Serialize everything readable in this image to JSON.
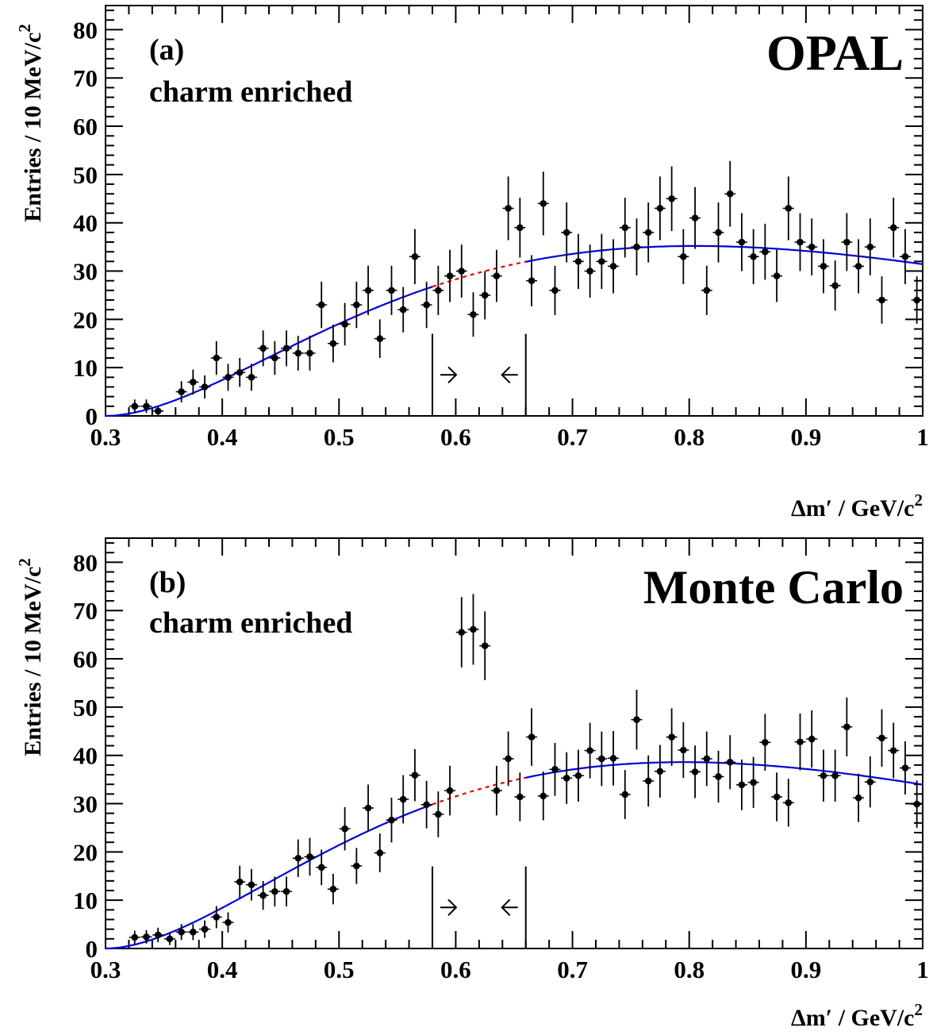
{
  "chart_data": [
    {
      "type": "scatter",
      "panel_label": "(a)",
      "subtitle": "charm enriched",
      "title": "OPAL",
      "ylabel_main": "Entries / 10 MeV/c",
      "ylabel_sup": "2",
      "xlabel_main": "Δm′ / GeV/c",
      "xlabel_sup": "2",
      "xlim": [
        0.3,
        1.0
      ],
      "ylim": [
        0,
        85
      ],
      "xticks": [
        "0.3",
        "0.4",
        "0.5",
        "0.6",
        "0.7",
        "0.8",
        "0.9",
        "1"
      ],
      "yticks": [
        "0",
        "10",
        "20",
        "30",
        "40",
        "50",
        "60",
        "70",
        "80"
      ],
      "grid": false,
      "signal_window": [
        0.58,
        0.66
      ],
      "fit_color": "#0000dd",
      "interp_color": "#ee0000",
      "series": [
        {
          "x": [
            0.325,
            0.335,
            0.345,
            0.365,
            0.375,
            0.385,
            0.395,
            0.405,
            0.415,
            0.425,
            0.435,
            0.445,
            0.455,
            0.465,
            0.475,
            0.485,
            0.495,
            0.505,
            0.515,
            0.525,
            0.535,
            0.545,
            0.555,
            0.565,
            0.575,
            0.585,
            0.595,
            0.605,
            0.615,
            0.625,
            0.635,
            0.645,
            0.655,
            0.665,
            0.675,
            0.685,
            0.695,
            0.705,
            0.715,
            0.725,
            0.735,
            0.745,
            0.755,
            0.765,
            0.775,
            0.785,
            0.795,
            0.805,
            0.815,
            0.825,
            0.835,
            0.845,
            0.855,
            0.865,
            0.875,
            0.885,
            0.895,
            0.905,
            0.915,
            0.925,
            0.935,
            0.945,
            0.955,
            0.965,
            0.975,
            0.985,
            0.995
          ],
          "y": [
            2,
            2,
            1,
            5,
            7,
            6,
            12,
            8,
            9,
            8,
            14,
            12,
            14,
            13,
            13,
            23,
            15,
            19,
            23,
            26,
            16,
            26,
            22,
            33,
            23,
            26,
            29,
            30,
            21,
            25,
            29,
            43,
            39,
            28,
            44,
            26,
            38,
            32,
            30,
            32,
            31,
            39,
            35,
            38,
            43,
            45,
            33,
            41,
            26,
            38,
            46,
            36,
            33,
            34,
            29,
            43,
            36,
            35,
            31,
            27,
            36,
            31,
            35,
            24,
            39,
            33,
            24
          ],
          "err": [
            1.4,
            1.4,
            1.0,
            2.2,
            2.6,
            2.4,
            3.5,
            2.8,
            3.0,
            2.8,
            3.7,
            3.5,
            3.7,
            3.6,
            3.6,
            4.8,
            3.9,
            4.4,
            4.8,
            5.1,
            4.0,
            5.1,
            4.7,
            5.7,
            4.8,
            5.1,
            5.4,
            5.5,
            4.6,
            5.0,
            5.4,
            6.6,
            6.2,
            5.3,
            6.6,
            5.1,
            6.2,
            5.7,
            5.5,
            5.7,
            5.6,
            6.2,
            5.9,
            6.2,
            6.6,
            6.7,
            5.7,
            6.4,
            5.1,
            6.2,
            6.8,
            6.0,
            5.7,
            5.8,
            5.4,
            6.6,
            6.0,
            5.9,
            5.6,
            5.2,
            6.0,
            5.6,
            5.9,
            4.9,
            6.2,
            5.7,
            4.9
          ]
        }
      ]
    },
    {
      "type": "scatter",
      "panel_label": "(b)",
      "subtitle": "charm enriched",
      "title": "Monte Carlo",
      "ylabel_main": "Entries / 10 MeV/c",
      "ylabel_sup": "2",
      "xlabel_main": "Δm′ / GeV/c",
      "xlabel_sup": "2",
      "xlim": [
        0.3,
        1.0
      ],
      "ylim": [
        0,
        85
      ],
      "xticks": [
        "0.3",
        "0.4",
        "0.5",
        "0.6",
        "0.7",
        "0.8",
        "0.9",
        "1"
      ],
      "yticks": [
        "0",
        "10",
        "20",
        "30",
        "40",
        "50",
        "60",
        "70",
        "80"
      ],
      "grid": false,
      "signal_window": [
        0.58,
        0.66
      ],
      "fit_color": "#0000dd",
      "interp_color": "#ee0000",
      "series": [
        {
          "x": [
            0.325,
            0.335,
            0.345,
            0.355,
            0.365,
            0.375,
            0.385,
            0.395,
            0.405,
            0.415,
            0.425,
            0.435,
            0.445,
            0.455,
            0.465,
            0.475,
            0.485,
            0.495,
            0.505,
            0.515,
            0.525,
            0.535,
            0.545,
            0.555,
            0.565,
            0.575,
            0.585,
            0.595,
            0.605,
            0.615,
            0.625,
            0.635,
            0.645,
            0.655,
            0.665,
            0.675,
            0.685,
            0.695,
            0.705,
            0.715,
            0.725,
            0.735,
            0.745,
            0.755,
            0.765,
            0.775,
            0.785,
            0.795,
            0.805,
            0.815,
            0.825,
            0.835,
            0.845,
            0.855,
            0.865,
            0.875,
            0.885,
            0.895,
            0.905,
            0.915,
            0.925,
            0.935,
            0.945,
            0.955,
            0.965,
            0.975,
            0.985,
            0.995
          ],
          "y": [
            2.3,
            2.4,
            2.8,
            2.0,
            3.4,
            3.4,
            4.0,
            6.5,
            5.4,
            13.8,
            13.2,
            11.0,
            11.8,
            11.8,
            18.7,
            19.0,
            16.8,
            12.3,
            24.8,
            17.1,
            29.1,
            19.8,
            26.6,
            30.9,
            35.9,
            29.8,
            27.8,
            32.7,
            65.5,
            66.1,
            62.7,
            32.7,
            39.3,
            31.4,
            43.8,
            31.6,
            37.1,
            35.3,
            35.8,
            41.0,
            39.3,
            39.4,
            31.9,
            47.4,
            34.7,
            36.7,
            43.8,
            41.1,
            36.6,
            39.3,
            35.6,
            38.6,
            33.9,
            34.4,
            42.7,
            31.4,
            30.2,
            42.8,
            43.4,
            35.8,
            35.8,
            45.9,
            31.2,
            34.5,
            43.6,
            41.0,
            37.4,
            29.9
          ]
        }
      ]
    }
  ]
}
